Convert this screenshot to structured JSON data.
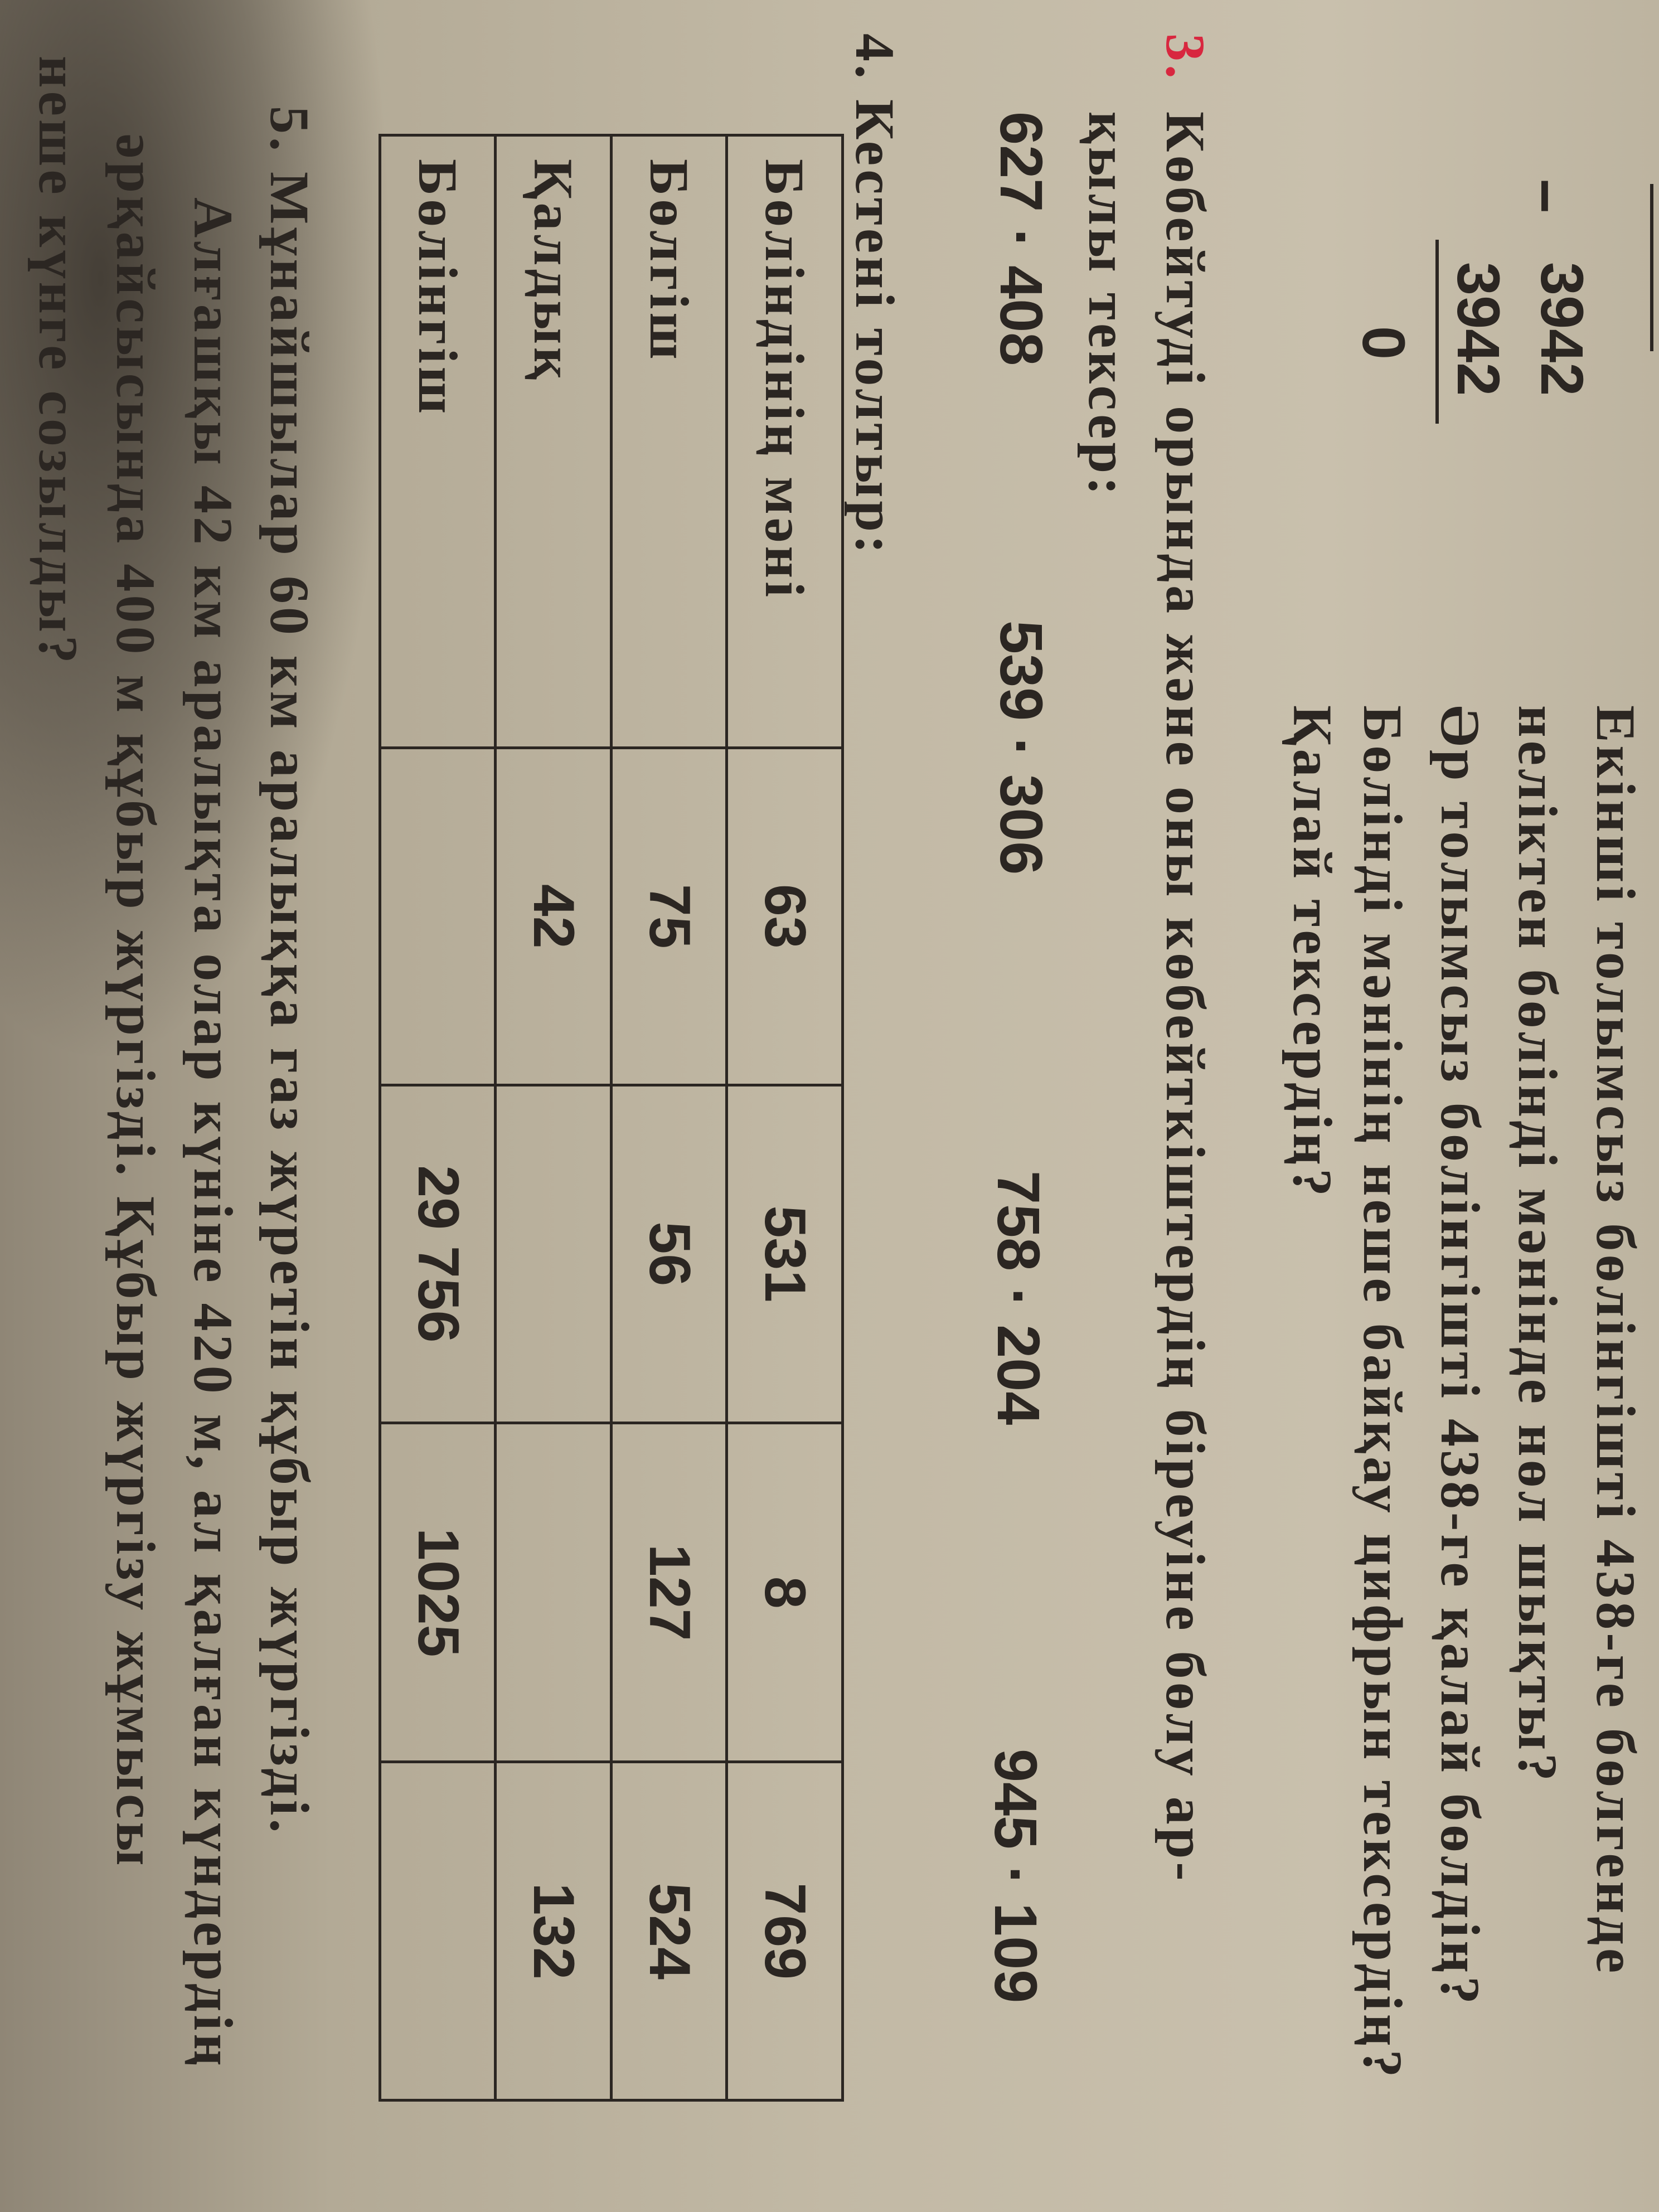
{
  "division": {
    "minuend": "3942",
    "minus": "−",
    "subtrahend": "3942",
    "result": "0"
  },
  "intro_questions": [
    "Екінші толымсыз бөлінгішті 438-ге бөлгенде",
    "неліктен бөлінді мәнінде нөл шықты?",
    "Әр толымсыз бөлінгішті 438-ге қалай бөлдің?",
    "Бөлінді мәнінің неше байқау цифрын тексердің?",
    "Қалай тексердің?"
  ],
  "task3": {
    "number": "3.",
    "lines": [
      "Көбейтуді орында және оны көбейткіштердің біреуіне бөлу ар-",
      "қылы тексер:"
    ],
    "expressions": [
      "627 · 408",
      "539 · 306",
      "758 · 204",
      "945 · 109"
    ]
  },
  "task4": {
    "title": "4. Кестені толтыр:",
    "rows": [
      {
        "label": "Бөліндінің мәні",
        "cells": [
          "63",
          "531",
          "8",
          "769"
        ]
      },
      {
        "label": "Бөлгіш",
        "cells": [
          "75",
          "56",
          "127",
          "524"
        ]
      },
      {
        "label": "Қалдық",
        "cells": [
          "42",
          "",
          "",
          "132"
        ]
      },
      {
        "label": "Бөлінгіш",
        "cells": [
          "",
          "29 756",
          "1025",
          ""
        ]
      }
    ]
  },
  "task5": {
    "lines": [
      "5. Мұнайшылар 60 км аралыққа газ жүретін құбыр жүргізді.",
      "Алғашқы 42 км аралықта олар күніне 420 м, ал қалған күндердің",
      "әрқайсысында 400 м құбыр жүргізді. Құбыр жүргізу жұмысы",
      "неше күнге созылды?"
    ]
  }
}
